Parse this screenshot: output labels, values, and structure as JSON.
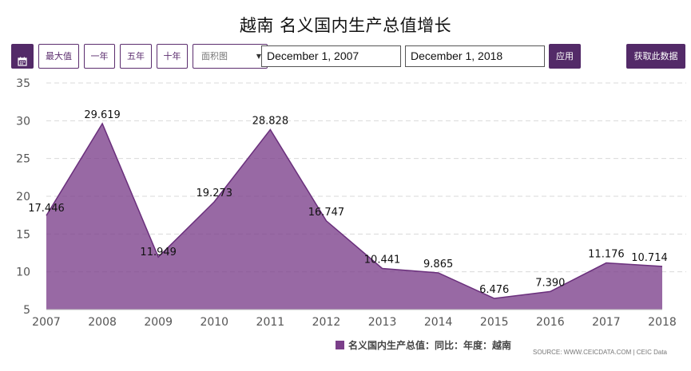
{
  "title": "越南 名义国内生产总值增长",
  "toolbar": {
    "calendar_icon": "calendar-icon",
    "buttons": [
      "最大值",
      "一年",
      "五年",
      "十年"
    ],
    "chart_type": "面积图",
    "start_date": "December 1, 2007",
    "end_date": "December 1, 2018",
    "apply_label": "应用",
    "get_data_label": "获取此数据"
  },
  "legend": {
    "label": "名义国内生产总值：同比：年度：越南",
    "color": "#7b3f8a"
  },
  "source": "SOURCE: WWW.CEICDATA.COM | CEIC Data",
  "chart_data": {
    "type": "area",
    "title": "越南 名义国内生产总值增长",
    "x": [
      2007,
      2008,
      2009,
      2010,
      2011,
      2012,
      2013,
      2014,
      2015,
      2016,
      2017,
      2018
    ],
    "series": [
      {
        "name": "名义国内生产总值：同比：年度：越南",
        "values": [
          17.446,
          29.619,
          11.949,
          19.273,
          28.828,
          16.747,
          10.441,
          9.865,
          6.476,
          7.39,
          11.176,
          10.714
        ],
        "labels": [
          "17.446",
          "29.619",
          "11.949",
          "19.273",
          "28.828",
          "16.747",
          "10.441",
          "9.865",
          "6.476",
          "7.390",
          "11.176",
          "10.714"
        ]
      }
    ],
    "ylim": [
      5,
      35
    ],
    "yticks": [
      5,
      10,
      15,
      20,
      25,
      30,
      35
    ],
    "grid": true,
    "legend_position": "bottom-center",
    "fill_color": "#7b3f8a",
    "line_color": "#6a2f7c"
  }
}
